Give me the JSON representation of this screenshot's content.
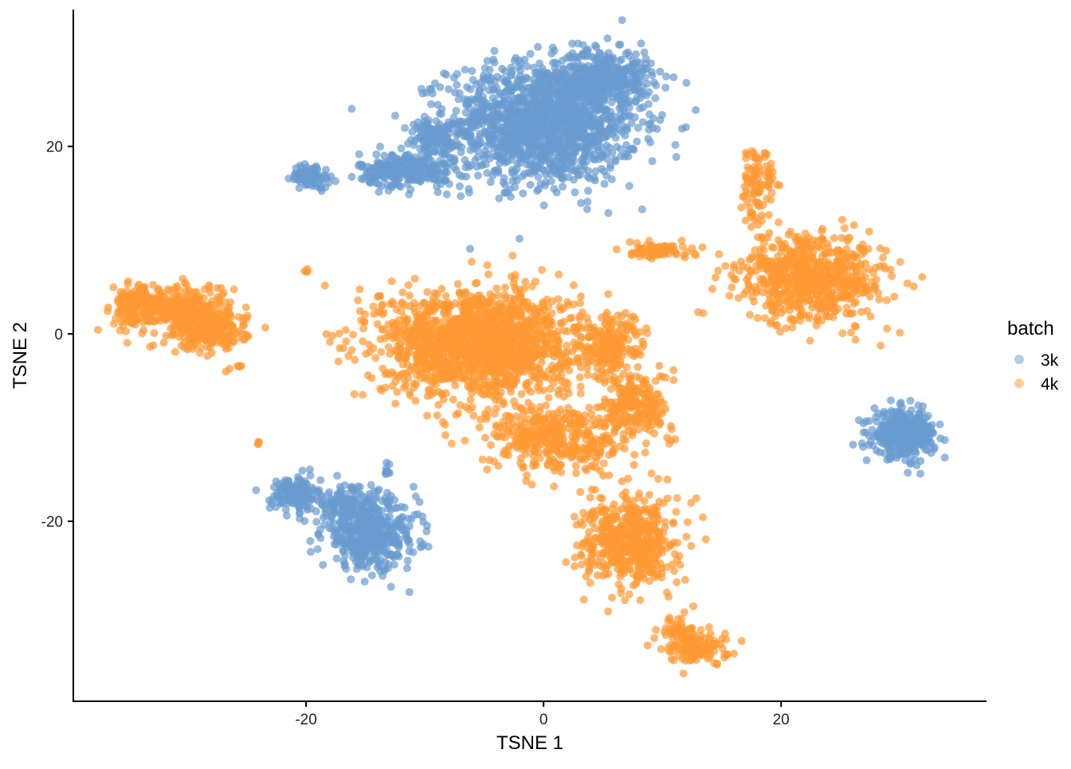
{
  "chart_data": {
    "type": "scatter",
    "title": "",
    "xlabel": "TSNE 1",
    "ylabel": "TSNE 2",
    "xlim": [
      -39.6,
      37.3
    ],
    "ylim": [
      -39.2,
      34.6
    ],
    "x_ticks": [
      -20,
      0,
      20
    ],
    "y_ticks": [
      -20,
      0,
      20
    ],
    "x_tick_labels": [
      "-20",
      "0",
      "20"
    ],
    "y_tick_labels": [
      "-20",
      "0",
      "20"
    ],
    "grid": false,
    "legend": {
      "title": "batch",
      "position": "right"
    },
    "point_alpha": 0.7,
    "series": [
      {
        "name": "3k",
        "color": "#6a9bd0",
        "clusters": [
          {
            "center": [
              0,
              22.5
            ],
            "sd": [
              4,
              3.2
            ],
            "n": 1500
          },
          {
            "center": [
              5.2,
              27.5
            ],
            "sd": [
              2,
              1.4
            ],
            "n": 300
          },
          {
            "center": [
              -11.5,
              17.5
            ],
            "sd": [
              2,
              0.9
            ],
            "n": 250
          },
          {
            "center": [
              -9.5,
              20.8
            ],
            "sd": [
              1.2,
              1
            ],
            "n": 100
          },
          {
            "center": [
              -19.6,
              16.8
            ],
            "sd": [
              0.8,
              0.6
            ],
            "n": 100
          },
          {
            "center": [
              -21,
              -17.1
            ],
            "sd": [
              1,
              0.9
            ],
            "n": 150
          },
          {
            "center": [
              -16.9,
              -18
            ],
            "sd": [
              1.2,
              1
            ],
            "n": 100
          },
          {
            "center": [
              -14.6,
              -21.4
            ],
            "sd": [
              2,
              1.8
            ],
            "n": 450
          },
          {
            "center": [
              -13.2,
              -14.6
            ],
            "sd": [
              0.2,
              0.4
            ],
            "n": 10
          },
          {
            "center": [
              30.4,
              -10.7
            ],
            "sd": [
              1.3,
              1.2
            ],
            "n": 400
          }
        ]
      },
      {
        "name": "4k",
        "color": "#ff9933",
        "clusters": [
          {
            "center": [
              -30.3,
              2.5
            ],
            "sd": [
              2,
              1.4
            ],
            "n": 300
          },
          {
            "center": [
              -28,
              0.3
            ],
            "sd": [
              1.5,
              1
            ],
            "n": 200
          },
          {
            "center": [
              -34.4,
              2.9
            ],
            "sd": [
              1,
              1
            ],
            "n": 150
          },
          {
            "center": [
              -5.5,
              -0.9
            ],
            "sd": [
              4,
              2.8
            ],
            "n": 1600
          },
          {
            "center": [
              5.6,
              -1.4
            ],
            "sd": [
              1.5,
              1.8
            ],
            "n": 200
          },
          {
            "center": [
              7.9,
              -7.7
            ],
            "sd": [
              1.3,
              1.8
            ],
            "n": 200
          },
          {
            "center": [
              1.2,
              -11.1
            ],
            "sd": [
              3,
              1.8
            ],
            "n": 400
          },
          {
            "center": [
              7.2,
              -22.2
            ],
            "sd": [
              2,
              2.4
            ],
            "n": 500
          },
          {
            "center": [
              13,
              -33.3
            ],
            "sd": [
              1.3,
              0.9
            ],
            "n": 120
          },
          {
            "center": [
              11.3,
              -31.6
            ],
            "sd": [
              0.6,
              0.6
            ],
            "n": 40
          },
          {
            "center": [
              9.6,
              8.9
            ],
            "sd": [
              1.5,
              0.4
            ],
            "n": 80
          },
          {
            "center": [
              22.7,
              5.9
            ],
            "sd": [
              3,
              2.3
            ],
            "n": 700
          },
          {
            "center": [
              18,
              16
            ],
            "sd": [
              0.7,
              2.4
            ],
            "n": 100
          },
          {
            "center": [
              -20,
              6.7
            ],
            "sd": [
              0.1,
              0.1
            ],
            "n": 4
          },
          {
            "center": [
              -13.8,
              3.9
            ],
            "sd": [
              0.1,
              0.1
            ],
            "n": 4
          },
          {
            "center": [
              -24,
              -11.6
            ],
            "sd": [
              0.1,
              0.1
            ],
            "n": 4
          },
          {
            "center": [
              -26.3,
              -3.7
            ],
            "sd": [
              0.5,
              0.2
            ],
            "n": 6
          }
        ]
      }
    ]
  }
}
